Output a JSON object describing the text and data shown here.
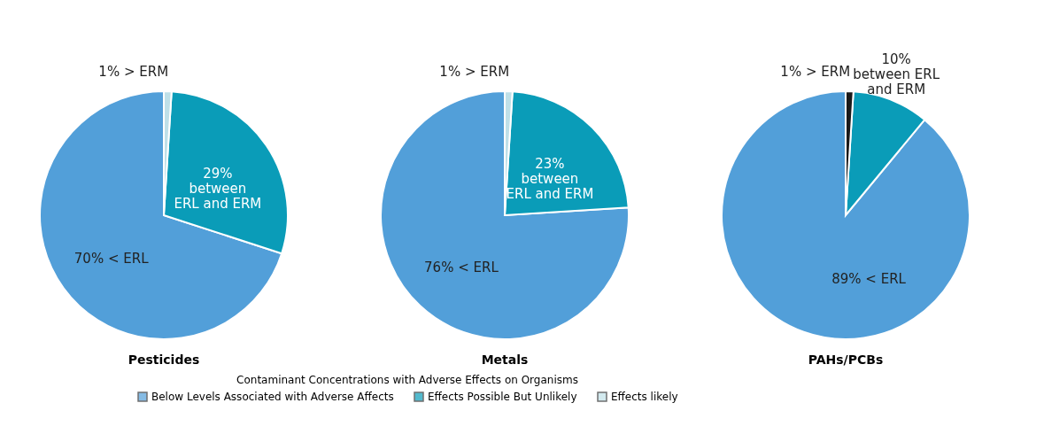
{
  "chart_data": [
    {
      "type": "pie",
      "title": "Pesticides",
      "categories": [
        "Below Levels Associated with Adverse Affects",
        "Effects Possible But Unlikely",
        "Effects likely"
      ],
      "values": [
        70,
        29,
        1
      ],
      "colors": [
        "#529fd9",
        "#0a9cb8",
        "#bfe0e8"
      ],
      "value_labels": [
        "70% < ERL",
        "29%\nbetween\nERL and ERM",
        "1% > ERM"
      ],
      "legend": "bottom",
      "legend_title": "Contaminant Concentrations with Adverse Effects on Organisms"
    },
    {
      "type": "pie",
      "title": "Metals",
      "categories": [
        null,
        null,
        null
      ],
      "values": [
        76,
        23,
        1
      ],
      "colors": [
        "#529fd9",
        "#0a9cb8",
        "#bfe0e8"
      ],
      "value_labels": [
        "76% < ERL",
        "23%\nbetween\nERL and ERM",
        "1% > ERM"
      ]
    },
    {
      "type": "pie",
      "title": "PAHs/PCBs",
      "categories": [
        null,
        null,
        null
      ],
      "values": [
        89,
        10,
        1
      ],
      "colors": [
        "#529fd9",
        "#0a9cb8",
        "#1a1a1a"
      ],
      "value_labels": [
        "89% < ERL",
        "10%\nbetween ERL\nand ERM",
        "1% > ERM"
      ]
    }
  ]
}
